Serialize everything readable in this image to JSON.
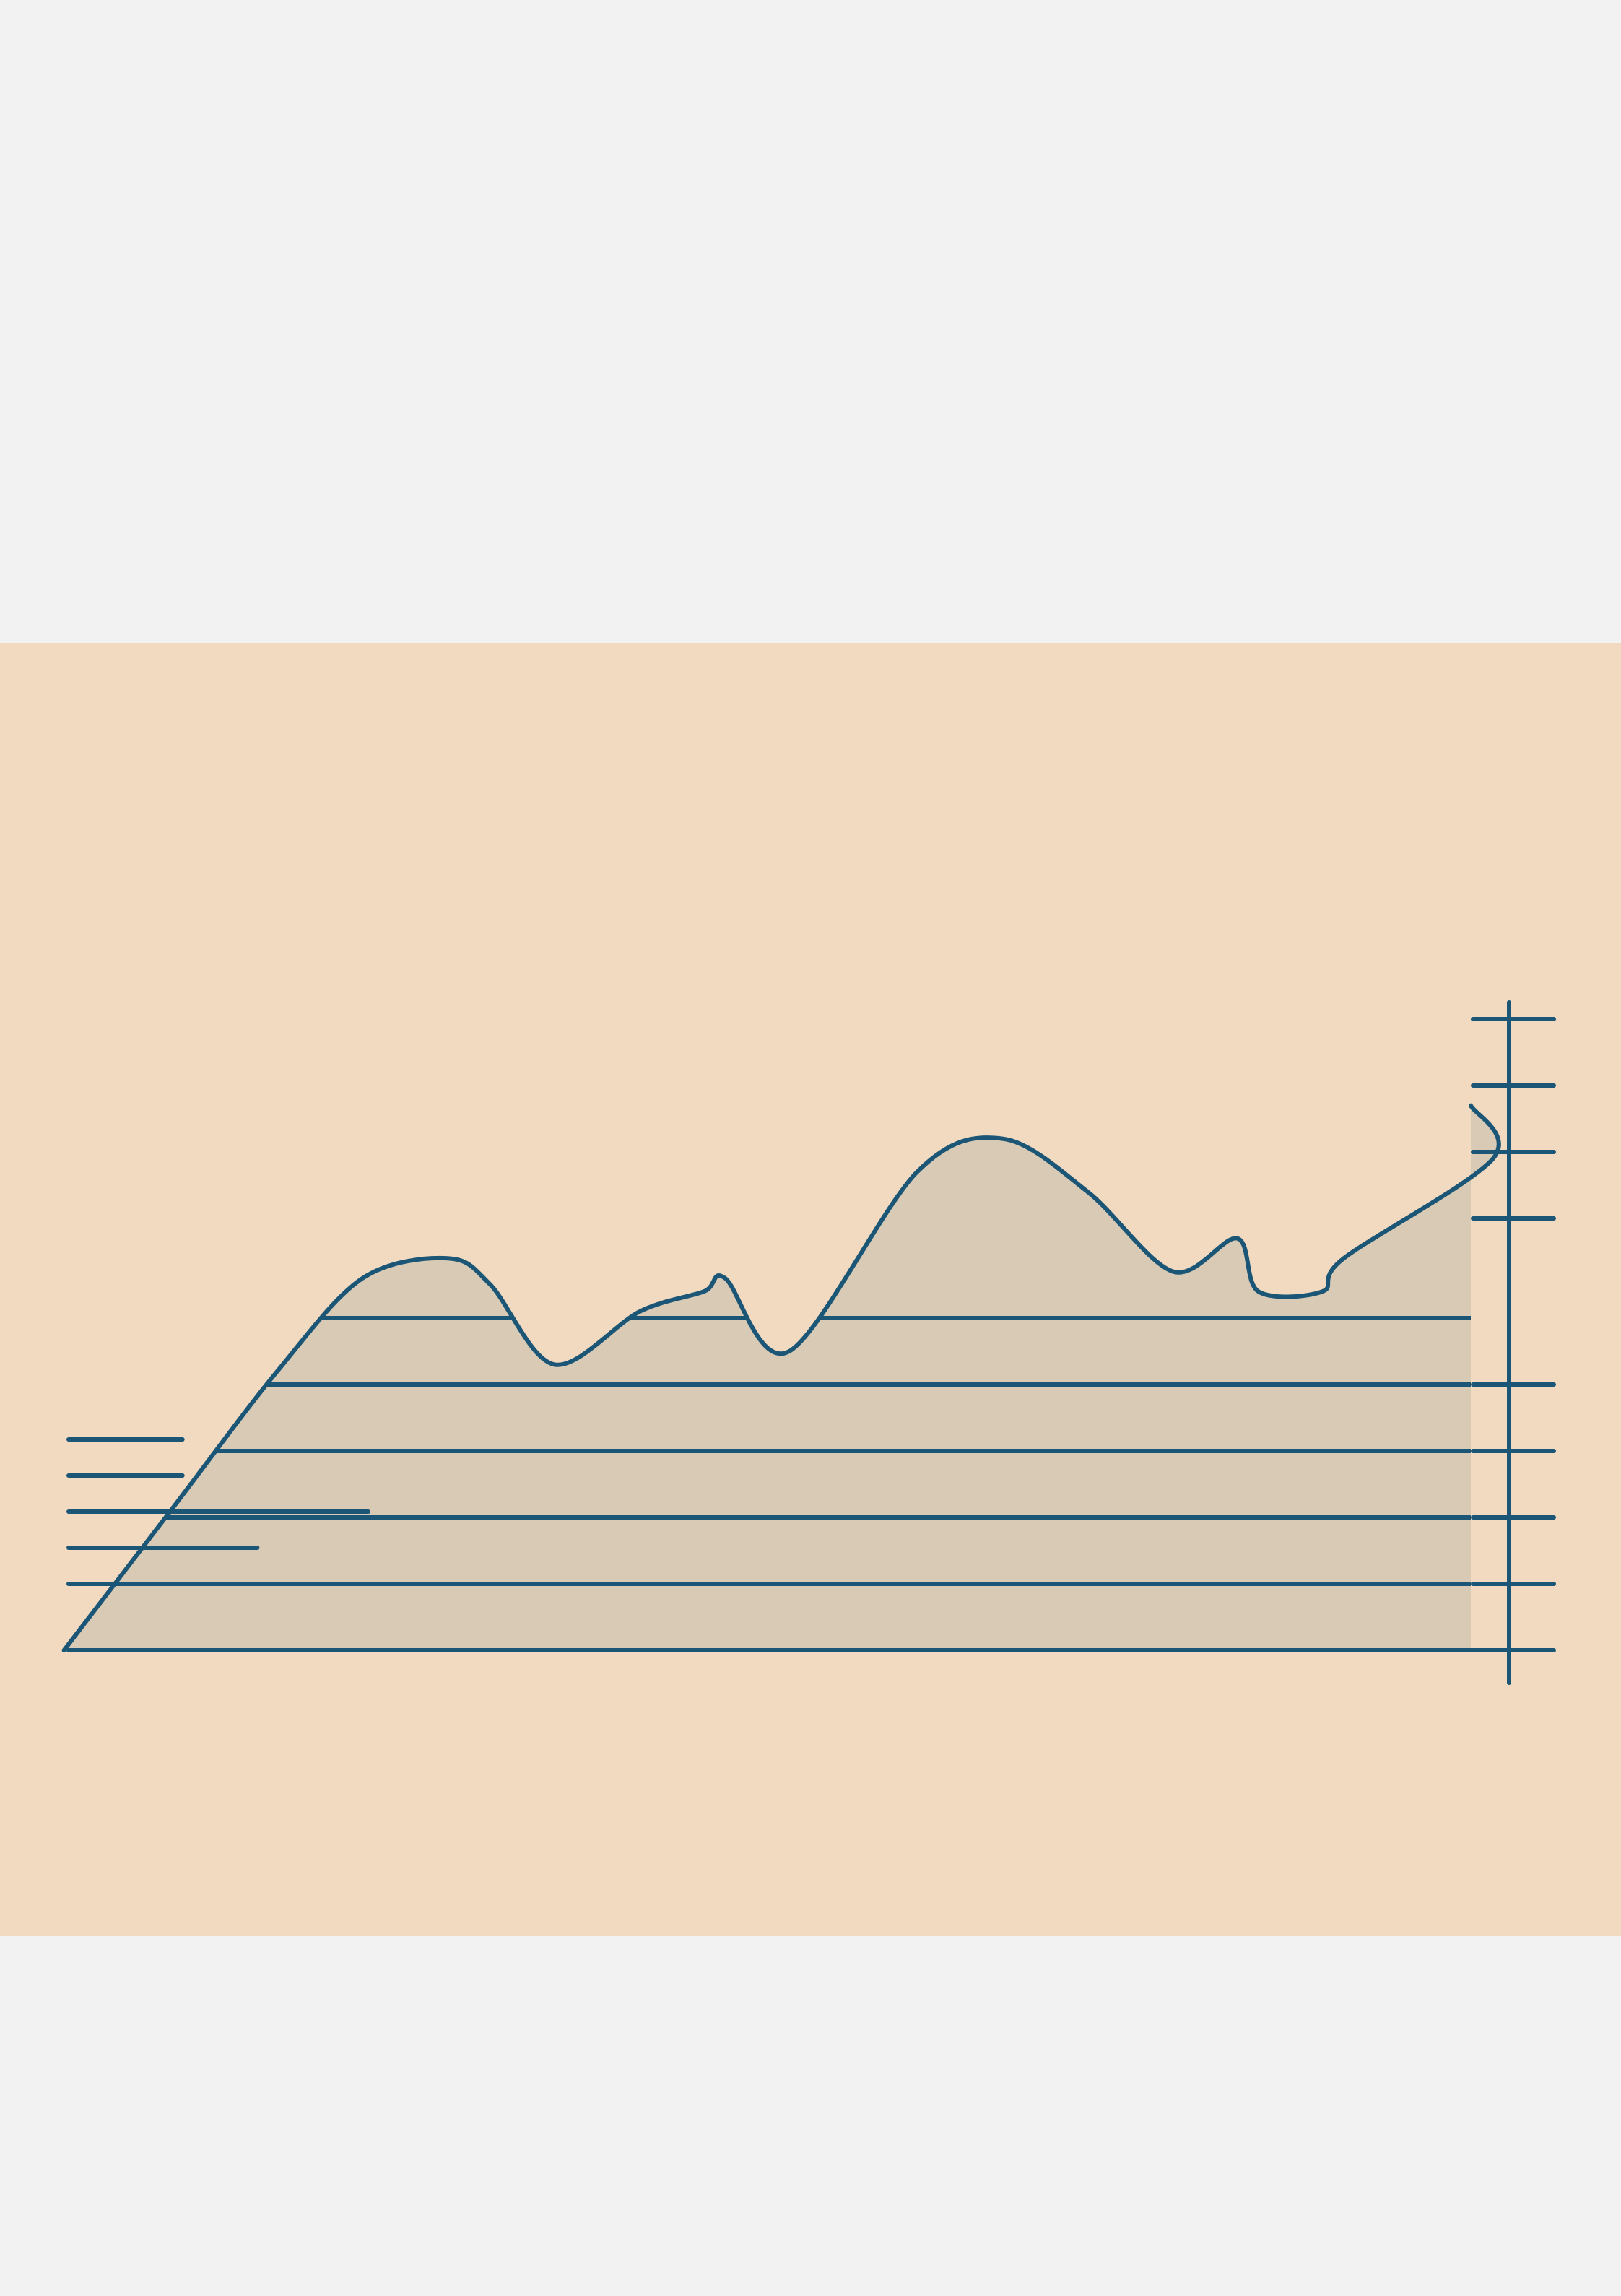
{
  "colors": {
    "page_background": "#f2f2f2",
    "panel_background": "#f2dac0",
    "area_fill": "#d8cab5",
    "ink": "#1b5676"
  },
  "chart_data": {
    "type": "area",
    "title": "",
    "xlabel": "",
    "ylabel": "",
    "x": [
      0,
      5,
      10,
      14,
      18,
      20,
      23,
      27,
      30,
      31,
      34,
      40,
      44,
      48,
      52,
      55,
      56,
      59,
      60,
      67,
      71.5
    ],
    "values": [
      0,
      2.1,
      4.2,
      5.6,
      5.9,
      5.5,
      4.3,
      5.1,
      5.4,
      5.6,
      4.5,
      7.2,
      7.7,
      6.9,
      5.7,
      6.2,
      5.4,
      5.4,
      5.9,
      7.4,
      8.2
    ],
    "xlim": [
      -3,
      73
    ],
    "ylim": [
      0,
      10
    ],
    "y_ticks_right": [
      1,
      2,
      3,
      4,
      6.5,
      7.5,
      8.5,
      9.5
    ],
    "y_ticks_left": [
      1,
      2,
      3,
      4,
      5
    ],
    "left_legend_bars": [
      0.38,
      0.38,
      1,
      0.63,
      0.25
    ],
    "grid": true,
    "grid_lines": [
      1,
      2,
      3,
      4,
      5
    ],
    "legend": "left",
    "axis_position": "right"
  }
}
